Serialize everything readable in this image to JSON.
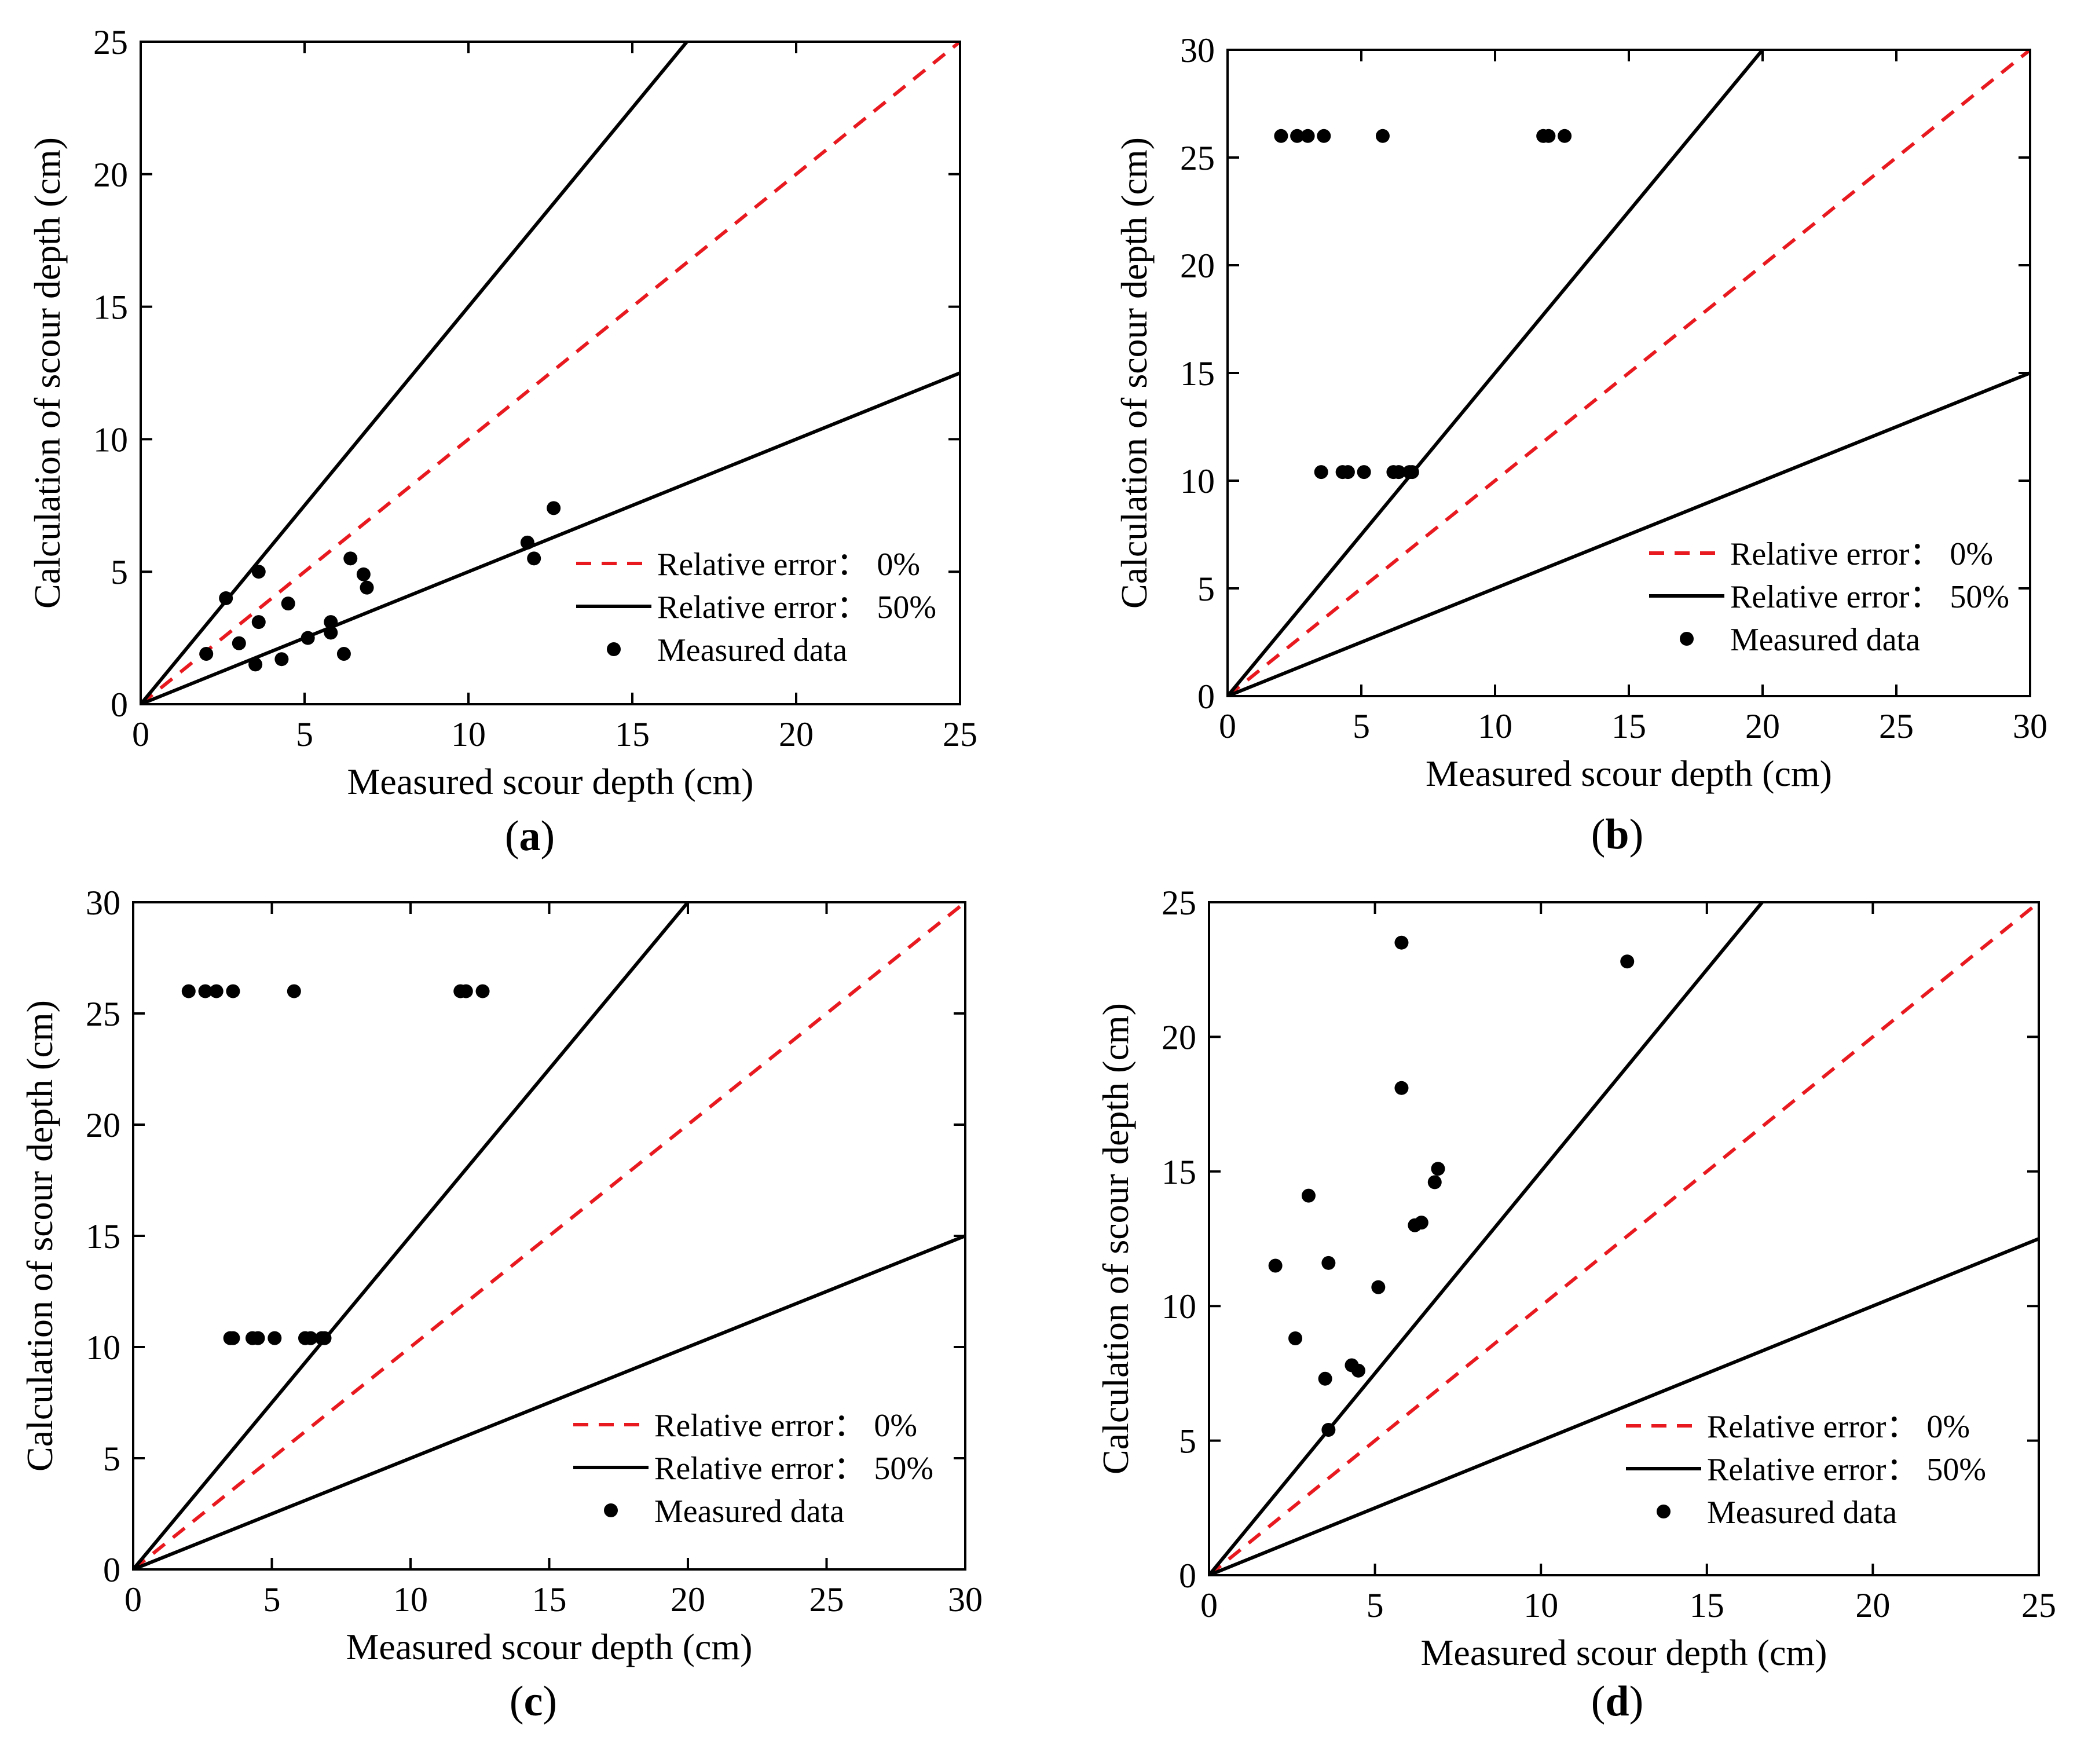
{
  "figure": {
    "legend": {
      "series": [
        {
          "label_text": "Relative error： 0%"
        },
        {
          "label_text": "Relative error： 50%"
        },
        {
          "label_text": "Measured data"
        }
      ]
    }
  },
  "chart_data": [
    {
      "panel": "a",
      "caption_open": "(",
      "caption_letter": "a",
      "caption_close": ")",
      "type": "scatter",
      "xlabel": "Measured scour depth  (cm)",
      "ylabel": "Calculation of scour depth (cm)",
      "xlim": [
        0,
        25
      ],
      "ylim": [
        0,
        25
      ],
      "xticks": [
        "0",
        "5",
        "10",
        "15",
        "20",
        "25"
      ],
      "yticks": [
        "0",
        "5",
        "10",
        "15",
        "20",
        "25"
      ],
      "lines": [
        {
          "name": "Relative error： 0%",
          "style": "dashed",
          "color": "#e8191f",
          "slope": 1.0
        },
        {
          "name": "Relative error： 50%",
          "style": "solid",
          "color": "#000000",
          "slope": 1.5
        },
        {
          "name": "Relative error： 50%",
          "style": "solid",
          "color": "#000000",
          "slope": 0.5
        }
      ],
      "points": [
        [
          2.0,
          1.9
        ],
        [
          2.6,
          4.0
        ],
        [
          3.0,
          2.3
        ],
        [
          3.5,
          1.5
        ],
        [
          3.6,
          5.0
        ],
        [
          3.6,
          3.1
        ],
        [
          4.3,
          1.7
        ],
        [
          4.5,
          3.8
        ],
        [
          5.1,
          2.5
        ],
        [
          5.8,
          3.1
        ],
        [
          5.8,
          2.7
        ],
        [
          6.2,
          1.9
        ],
        [
          6.4,
          5.5
        ],
        [
          6.8,
          4.9
        ],
        [
          6.9,
          4.4
        ],
        [
          11.8,
          6.1
        ],
        [
          12.0,
          5.5
        ],
        [
          12.6,
          7.4
        ]
      ]
    },
    {
      "panel": "b",
      "caption_open": "(",
      "caption_letter": "b",
      "caption_close": ")",
      "type": "scatter",
      "xlabel": "Measured scour depth (cm)",
      "ylabel": "Calculation of scour depth (cm)",
      "xlim": [
        0,
        30
      ],
      "ylim": [
        0,
        30
      ],
      "xticks": [
        "0",
        "5",
        "10",
        "15",
        "20",
        "25",
        "30"
      ],
      "yticks": [
        "0",
        "5",
        "10",
        "15",
        "20",
        "25",
        "30"
      ],
      "lines": [
        {
          "name": "Relative error： 0%",
          "style": "dashed",
          "color": "#e8191f",
          "slope": 1.0
        },
        {
          "name": "Relative error： 50%",
          "style": "solid",
          "color": "#000000",
          "slope": 1.5
        },
        {
          "name": "Relative error： 50%",
          "style": "solid",
          "color": "#000000",
          "slope": 0.5
        }
      ],
      "points": [
        [
          2.0,
          26.0
        ],
        [
          2.6,
          26.0
        ],
        [
          3.0,
          26.0
        ],
        [
          3.6,
          26.0
        ],
        [
          5.8,
          26.0
        ],
        [
          11.8,
          26.0
        ],
        [
          12.0,
          26.0
        ],
        [
          12.6,
          26.0
        ],
        [
          3.5,
          10.4
        ],
        [
          4.3,
          10.4
        ],
        [
          4.5,
          10.4
        ],
        [
          5.1,
          10.4
        ],
        [
          6.2,
          10.4
        ],
        [
          6.4,
          10.4
        ],
        [
          6.8,
          10.4
        ],
        [
          6.9,
          10.4
        ]
      ]
    },
    {
      "panel": "c",
      "caption_open": "(",
      "caption_letter": "c",
      "caption_close": ")",
      "type": "scatter",
      "xlabel": "Measured scour depth (cm)",
      "ylabel": "Calculation of scour depth (cm)",
      "xlim": [
        0,
        30
      ],
      "ylim": [
        0,
        30
      ],
      "xticks": [
        "0",
        "5",
        "10",
        "15",
        "20",
        "25",
        "30"
      ],
      "yticks": [
        "0",
        "5",
        "10",
        "15",
        "20",
        "25",
        "30"
      ],
      "lines": [
        {
          "name": "Relative error： 0%",
          "style": "dashed",
          "color": "#e8191f",
          "slope": 1.0
        },
        {
          "name": "Relative error： 50%",
          "style": "solid",
          "color": "#000000",
          "slope": 1.5
        },
        {
          "name": "Relative error： 50%",
          "style": "solid",
          "color": "#000000",
          "slope": 0.5
        }
      ],
      "points": [
        [
          2.0,
          26.0
        ],
        [
          2.6,
          26.0
        ],
        [
          3.0,
          26.0
        ],
        [
          3.6,
          26.0
        ],
        [
          5.8,
          26.0
        ],
        [
          11.8,
          26.0
        ],
        [
          12.0,
          26.0
        ],
        [
          12.6,
          26.0
        ],
        [
          3.5,
          10.4
        ],
        [
          3.6,
          10.4
        ],
        [
          4.3,
          10.4
        ],
        [
          4.5,
          10.4
        ],
        [
          5.1,
          10.4
        ],
        [
          6.2,
          10.4
        ],
        [
          6.4,
          10.4
        ],
        [
          6.8,
          10.4
        ],
        [
          6.9,
          10.4
        ]
      ]
    },
    {
      "panel": "d",
      "caption_open": "(",
      "caption_letter": "d",
      "caption_close": ")",
      "type": "scatter",
      "xlabel": "Measured scour depth (cm)",
      "ylabel": "Calculation of scour depth (cm)",
      "xlim": [
        0,
        25
      ],
      "ylim": [
        0,
        25
      ],
      "xticks": [
        "0",
        "5",
        "10",
        "15",
        "20",
        "25"
      ],
      "yticks": [
        "0",
        "5",
        "10",
        "15",
        "20",
        "25"
      ],
      "lines": [
        {
          "name": "Relative error： 0%",
          "style": "dashed",
          "color": "#e8191f",
          "slope": 1.0
        },
        {
          "name": "Relative error： 50%",
          "style": "solid",
          "color": "#000000",
          "slope": 1.5
        },
        {
          "name": "Relative error： 50%",
          "style": "solid",
          "color": "#000000",
          "slope": 0.5
        }
      ],
      "points": [
        [
          2.0,
          11.5
        ],
        [
          2.6,
          8.8
        ],
        [
          3.0,
          14.1
        ],
        [
          3.5,
          7.3
        ],
        [
          3.6,
          5.4
        ],
        [
          3.6,
          11.6
        ],
        [
          4.3,
          7.8
        ],
        [
          4.5,
          7.6
        ],
        [
          5.1,
          10.7
        ],
        [
          5.8,
          23.5
        ],
        [
          5.8,
          18.1
        ],
        [
          6.2,
          13.0
        ],
        [
          6.4,
          13.1
        ],
        [
          6.8,
          14.6
        ],
        [
          6.9,
          15.1
        ],
        [
          12.6,
          22.8
        ]
      ]
    }
  ]
}
